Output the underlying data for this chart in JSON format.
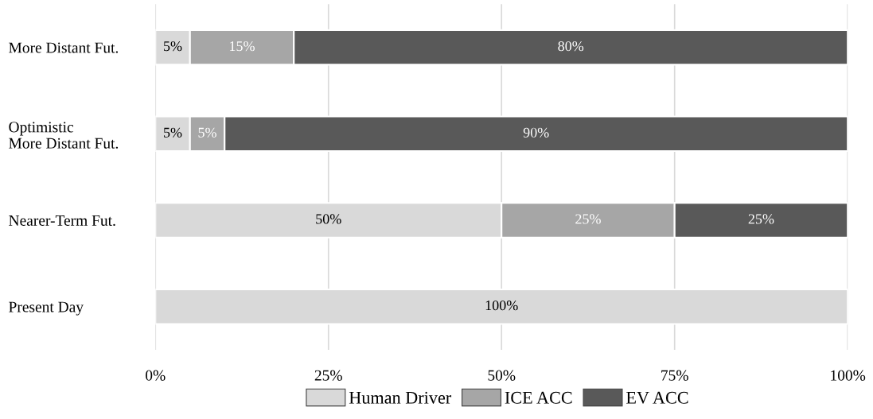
{
  "chart_data": {
    "type": "bar",
    "orientation": "horizontal",
    "stacked": true,
    "categories": [
      "More Distant Fut.",
      "Optimistic\nMore Distant Fut.",
      "Nearer-Term Fut.",
      "Present Day"
    ],
    "series": [
      {
        "name": "Human Driver",
        "color": "#d9d9d9",
        "values": [
          5,
          5,
          50,
          100
        ],
        "value_labels": [
          "5%",
          "5%",
          "50%",
          "100%"
        ]
      },
      {
        "name": "ICE ACC",
        "color": "#a6a6a6",
        "values": [
          15,
          5,
          25,
          0
        ],
        "value_labels": [
          "15%",
          "5%",
          "25%",
          null
        ]
      },
      {
        "name": "EV ACC",
        "color": "#595959",
        "values": [
          80,
          90,
          25,
          0
        ],
        "value_labels": [
          "80%",
          "90%",
          "25%",
          null
        ]
      }
    ],
    "xlim": [
      0,
      100
    ],
    "xticks": [
      {
        "value": 0,
        "label": "0%"
      },
      {
        "value": 25,
        "label": "25%"
      },
      {
        "value": 50,
        "label": "50%"
      },
      {
        "value": 75,
        "label": "75%"
      },
      {
        "value": 100,
        "label": "100%"
      }
    ],
    "grid": "x",
    "legend": "bottom"
  }
}
